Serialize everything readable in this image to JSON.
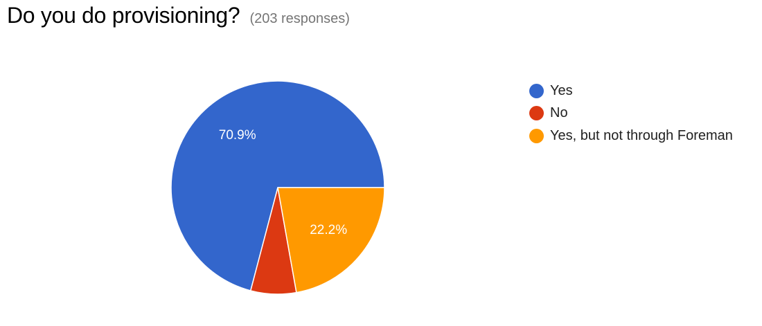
{
  "header": {
    "title": "Do you do provisioning?",
    "responses": "(203 responses)"
  },
  "chart_data": {
    "type": "pie",
    "categories": [
      "Yes",
      "No",
      "Yes, but not through Foreman"
    ],
    "values": [
      70.9,
      6.9,
      22.2
    ],
    "slice_labels": [
      "70.9%",
      "",
      "22.2%"
    ],
    "colors": [
      "#3366cc",
      "#dc3912",
      "#ff9900"
    ],
    "title": "Do you do provisioning?",
    "legend_placement": "right"
  }
}
